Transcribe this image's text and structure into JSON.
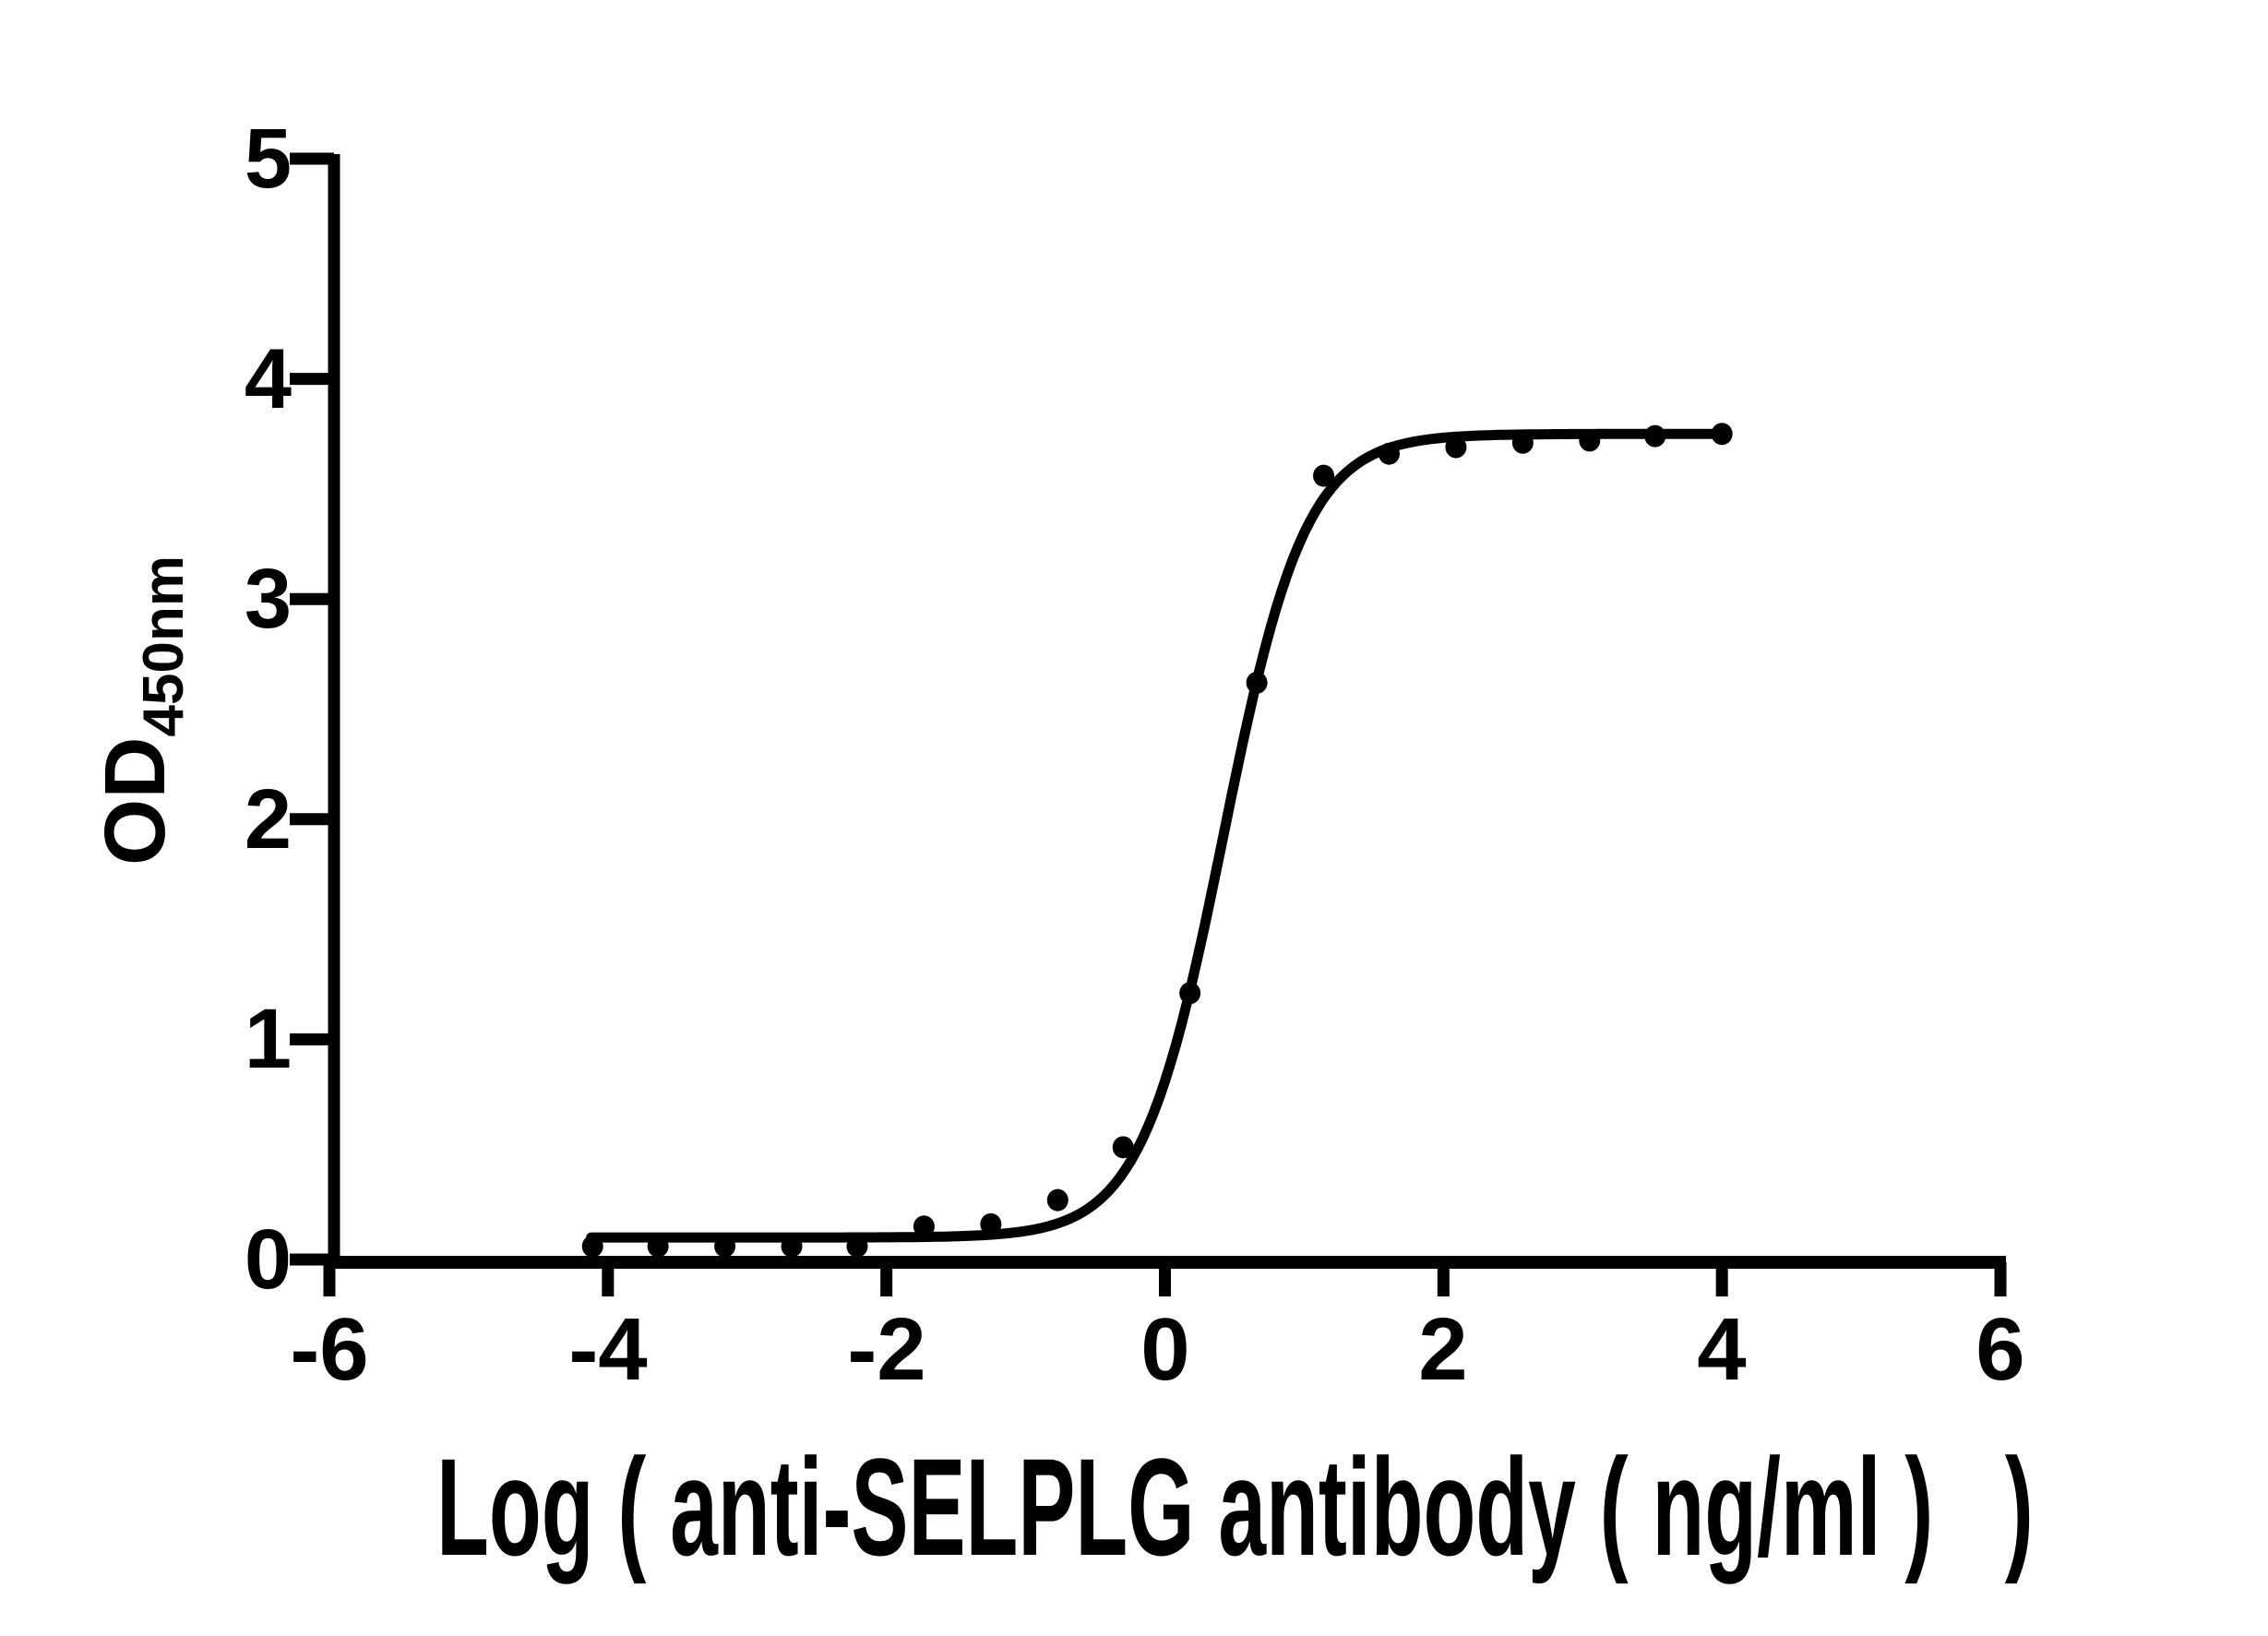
{
  "chart_data": {
    "type": "scatter",
    "title": "",
    "xlabel": "Log ( anti-SELPLG antibody ( ng/ml )   )",
    "ylabel": "OD",
    "ylabel_subscript": "450nm",
    "xlim": [
      -6,
      6
    ],
    "ylim": [
      0,
      5
    ],
    "grid": false,
    "legend": "none",
    "axis_color": "#000000",
    "marker_color": "#000000",
    "line_color": "#000000",
    "background_color": "#ffffff",
    "x_ticks": [
      -6,
      -4,
      -2,
      0,
      2,
      4,
      6
    ],
    "x_tick_labels": [
      "-6",
      "-4",
      "-2",
      "0",
      "2",
      "4",
      "6"
    ],
    "y_ticks": [
      0,
      1,
      2,
      3,
      4,
      5
    ],
    "y_tick_labels": [
      "0",
      "1",
      "2",
      "3",
      "4",
      "5"
    ],
    "points": [
      {
        "log_conc": -4.11,
        "od": 0.06
      },
      {
        "log_conc": -3.64,
        "od": 0.06
      },
      {
        "log_conc": -3.16,
        "od": 0.06
      },
      {
        "log_conc": -2.68,
        "od": 0.06
      },
      {
        "log_conc": -2.21,
        "od": 0.06
      },
      {
        "log_conc": -1.73,
        "od": 0.15
      },
      {
        "log_conc": -1.25,
        "od": 0.16
      },
      {
        "log_conc": -0.77,
        "od": 0.27
      },
      {
        "log_conc": -0.3,
        "od": 0.51
      },
      {
        "log_conc": 0.18,
        "od": 1.21
      },
      {
        "log_conc": 0.66,
        "od": 2.62
      },
      {
        "log_conc": 1.14,
        "od": 3.56
      },
      {
        "log_conc": 1.61,
        "od": 3.66
      },
      {
        "log_conc": 2.09,
        "od": 3.69
      },
      {
        "log_conc": 2.57,
        "od": 3.71
      },
      {
        "log_conc": 3.05,
        "od": 3.72
      },
      {
        "log_conc": 3.52,
        "od": 3.74
      },
      {
        "log_conc": 4.0,
        "od": 3.75
      }
    ],
    "fit_curve": {
      "model": "4PL",
      "bottom": 0.1,
      "top": 3.75,
      "log_ec50": 0.42,
      "hill_slope": 1.47,
      "x_start": -4.12,
      "x_end": 4.0
    }
  }
}
